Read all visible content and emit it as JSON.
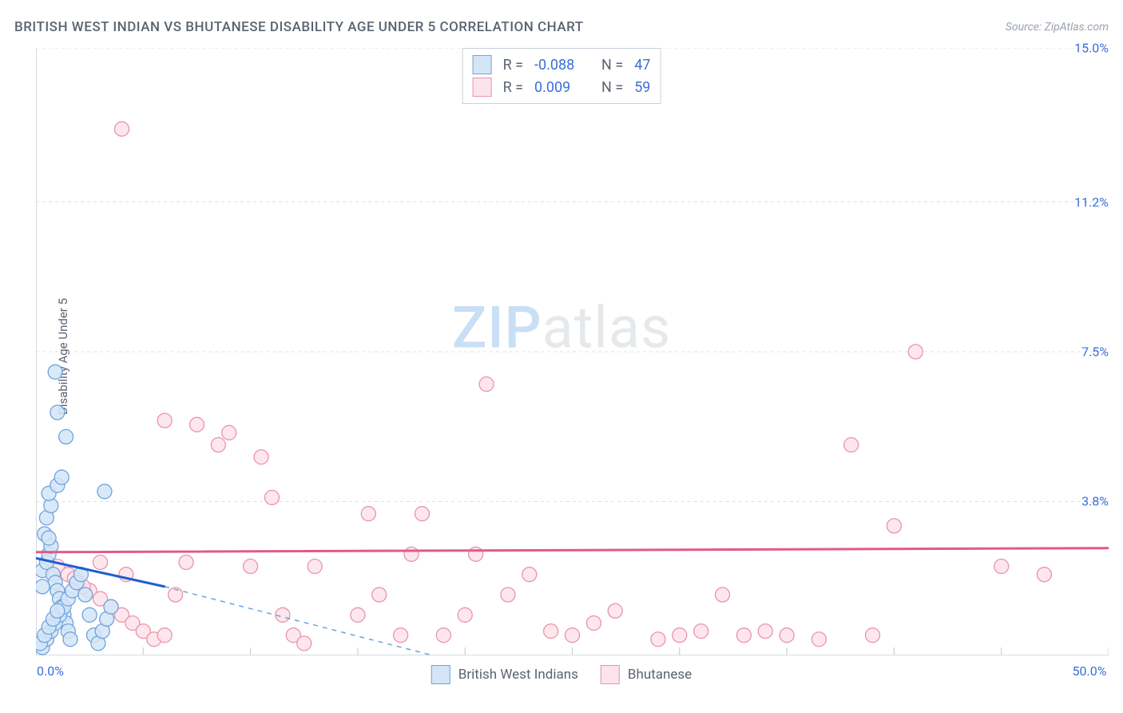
{
  "title": "BRITISH WEST INDIAN VS BHUTANESE DISABILITY AGE UNDER 5 CORRELATION CHART",
  "source": "Source: ZipAtlas.com",
  "ylabel": "Disability Age Under 5",
  "watermark": {
    "zip": "ZIP",
    "atlas": "atlas"
  },
  "chart": {
    "type": "scatter",
    "background_color": "#ffffff",
    "grid_color": "#dce1e7",
    "axis_color": "#c9d1da",
    "text_color": "#5a6470",
    "value_color": "#3b6fd6",
    "xlim": [
      0,
      50
    ],
    "ylim": [
      0,
      15
    ],
    "yticks": [
      {
        "v": 3.8,
        "label": "3.8%"
      },
      {
        "v": 7.5,
        "label": "7.5%"
      },
      {
        "v": 11.2,
        "label": "11.2%"
      },
      {
        "v": 15.0,
        "label": "15.0%"
      }
    ],
    "xticks_major": [
      0.0,
      50.0
    ],
    "xticks_minor": [
      5,
      10,
      15,
      20,
      25,
      30,
      35,
      40,
      45
    ],
    "xlabels": {
      "0": "0.0%",
      "50": "50.0%"
    },
    "marker_radius": 9,
    "marker_stroke_width": 1.3,
    "series": [
      {
        "name": "British West Indians",
        "fill": "#d4e5f7",
        "stroke": "#6fa3dd",
        "R": "-0.088",
        "N": "47",
        "data": [
          [
            0.3,
            2.1
          ],
          [
            0.5,
            2.3
          ],
          [
            0.6,
            2.5
          ],
          [
            0.7,
            2.7
          ],
          [
            0.8,
            2.0
          ],
          [
            0.9,
            1.8
          ],
          [
            1.0,
            1.6
          ],
          [
            1.1,
            1.4
          ],
          [
            1.2,
            1.2
          ],
          [
            1.3,
            1.0
          ],
          [
            1.4,
            0.8
          ],
          [
            1.5,
            0.6
          ],
          [
            1.6,
            0.4
          ],
          [
            0.4,
            3.0
          ],
          [
            0.5,
            3.4
          ],
          [
            0.7,
            3.7
          ],
          [
            0.6,
            4.0
          ],
          [
            1.0,
            4.2
          ],
          [
            1.2,
            4.4
          ],
          [
            1.4,
            5.4
          ],
          [
            1.0,
            6.0
          ],
          [
            0.9,
            7.0
          ],
          [
            0.3,
            0.2
          ],
          [
            0.5,
            0.4
          ],
          [
            0.7,
            0.6
          ],
          [
            0.9,
            0.8
          ],
          [
            1.1,
            1.0
          ],
          [
            1.3,
            1.2
          ],
          [
            1.5,
            1.4
          ],
          [
            1.7,
            1.6
          ],
          [
            1.9,
            1.8
          ],
          [
            2.1,
            2.0
          ],
          [
            2.3,
            1.5
          ],
          [
            2.5,
            1.0
          ],
          [
            2.7,
            0.5
          ],
          [
            2.9,
            0.3
          ],
          [
            3.1,
            0.6
          ],
          [
            3.3,
            0.9
          ],
          [
            3.5,
            1.2
          ],
          [
            0.2,
            0.3
          ],
          [
            0.4,
            0.5
          ],
          [
            0.6,
            0.7
          ],
          [
            0.8,
            0.9
          ],
          [
            1.0,
            1.1
          ],
          [
            3.2,
            4.05
          ],
          [
            0.3,
            1.7
          ],
          [
            0.6,
            2.9
          ]
        ],
        "reg_solid": {
          "x1": 0,
          "y1": 2.4,
          "x2": 6,
          "y2": 1.7,
          "color": "#1f5fd0",
          "width": 3
        },
        "reg_dash": {
          "x1": 6,
          "y1": 1.7,
          "x2": 18.5,
          "y2": 0,
          "color": "#6fa3dd",
          "width": 1.5,
          "dash": "6,6"
        }
      },
      {
        "name": "Bhutanese",
        "fill": "#fde3ea",
        "stroke": "#e993ac",
        "R": "0.009",
        "N": "59",
        "data": [
          [
            1.0,
            2.2
          ],
          [
            1.5,
            2.0
          ],
          [
            2.0,
            1.8
          ],
          [
            2.5,
            1.6
          ],
          [
            3.0,
            1.4
          ],
          [
            3.5,
            1.2
          ],
          [
            4.0,
            1.0
          ],
          [
            4.5,
            0.8
          ],
          [
            5.0,
            0.6
          ],
          [
            5.5,
            0.4
          ],
          [
            6.0,
            0.5
          ],
          [
            6.5,
            1.5
          ],
          [
            7.0,
            2.3
          ],
          [
            6.0,
            5.8
          ],
          [
            7.5,
            5.7
          ],
          [
            8.5,
            5.2
          ],
          [
            9.0,
            5.5
          ],
          [
            10.0,
            2.2
          ],
          [
            10.5,
            4.9
          ],
          [
            11.0,
            3.9
          ],
          [
            11.5,
            1.0
          ],
          [
            12.0,
            0.5
          ],
          [
            12.5,
            0.3
          ],
          [
            13.0,
            2.2
          ],
          [
            15.0,
            1.0
          ],
          [
            15.5,
            3.5
          ],
          [
            16.0,
            1.5
          ],
          [
            17.0,
            0.5
          ],
          [
            17.5,
            2.5
          ],
          [
            18.0,
            3.5
          ],
          [
            19.0,
            0.5
          ],
          [
            20.0,
            1.0
          ],
          [
            20.5,
            2.5
          ],
          [
            21.0,
            6.7
          ],
          [
            22.0,
            1.5
          ],
          [
            23.0,
            2.0
          ],
          [
            24.0,
            0.6
          ],
          [
            25.0,
            0.5
          ],
          [
            26.0,
            0.8
          ],
          [
            27.0,
            1.1
          ],
          [
            29.0,
            0.4
          ],
          [
            30.0,
            0.5
          ],
          [
            31.0,
            0.6
          ],
          [
            32.0,
            1.5
          ],
          [
            33.0,
            0.5
          ],
          [
            34.0,
            0.6
          ],
          [
            35.0,
            0.5
          ],
          [
            36.5,
            0.4
          ],
          [
            38.0,
            5.2
          ],
          [
            39.0,
            0.5
          ],
          [
            40.0,
            3.2
          ],
          [
            41.0,
            7.5
          ],
          [
            45.0,
            2.2
          ],
          [
            47.0,
            2.0
          ],
          [
            4.0,
            13.0
          ],
          [
            3.0,
            2.3
          ],
          [
            4.2,
            2.0
          ],
          [
            1.8,
            1.9
          ],
          [
            2.2,
            1.7
          ]
        ],
        "reg_solid": {
          "x1": 0,
          "y1": 2.55,
          "x2": 50,
          "y2": 2.65,
          "color": "#e05a89",
          "width": 3
        }
      }
    ]
  },
  "legend_top": {
    "rows": [
      {
        "series": 0
      },
      {
        "series": 1
      }
    ],
    "labels": {
      "R": "R =",
      "N": "N ="
    }
  },
  "legend_bottom": {
    "items": [
      {
        "series": 0,
        "label": "British West Indians"
      },
      {
        "series": 1,
        "label": "Bhutanese"
      }
    ]
  }
}
